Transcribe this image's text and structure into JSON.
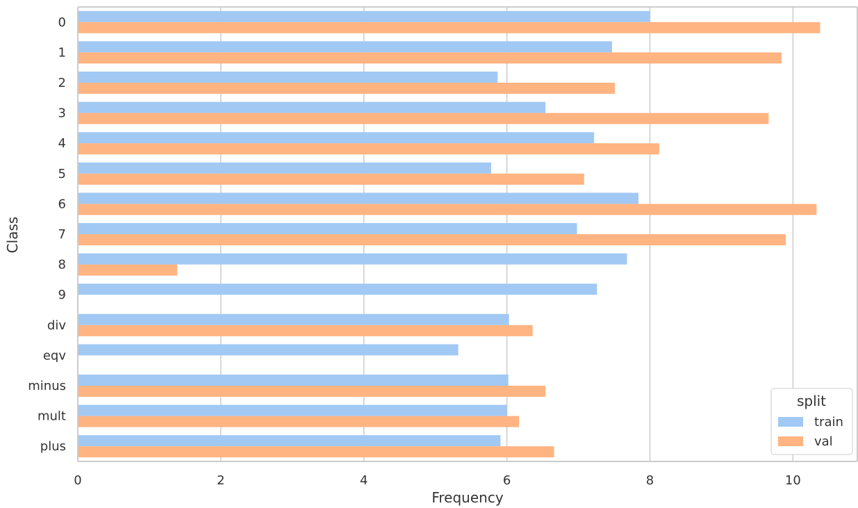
{
  "chart_data": {
    "type": "bar",
    "orientation": "horizontal",
    "xlabel": "Frequency",
    "ylabel": "Class",
    "xlim": [
      0,
      10.9
    ],
    "xticks": [
      0,
      2,
      4,
      6,
      8,
      10
    ],
    "categories": [
      "0",
      "1",
      "2",
      "3",
      "4",
      "5",
      "6",
      "7",
      "8",
      "9",
      "div",
      "eqv",
      "minus",
      "mult",
      "plus"
    ],
    "series": [
      {
        "name": "train",
        "color": "#a1c9f4",
        "values": [
          8.0,
          7.47,
          5.87,
          6.54,
          7.22,
          5.78,
          7.84,
          6.98,
          7.68,
          7.26,
          6.03,
          5.32,
          6.02,
          6.0,
          5.91
        ]
      },
      {
        "name": "val",
        "color": "#ffb482",
        "values": [
          10.38,
          9.84,
          7.51,
          9.66,
          8.13,
          7.08,
          10.33,
          9.9,
          1.39,
          null,
          6.36,
          null,
          6.54,
          6.17,
          6.66
        ]
      }
    ],
    "grid": "vertical",
    "legend": {
      "title": "split",
      "position": "bottom-right"
    }
  }
}
